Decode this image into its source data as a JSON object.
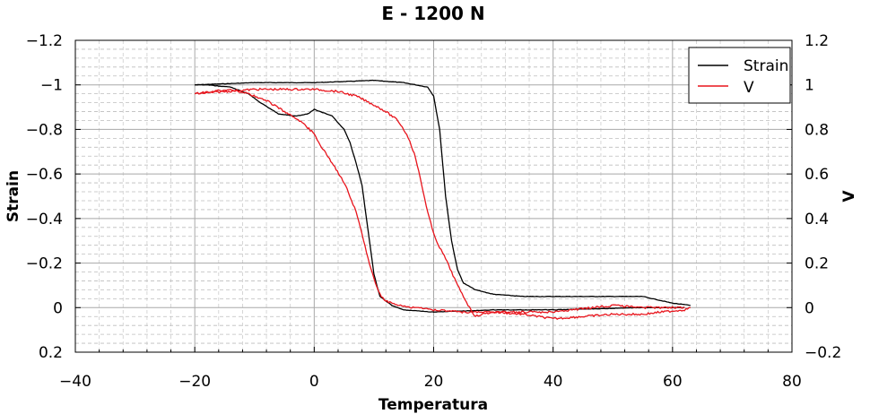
{
  "chart_data": {
    "type": "line",
    "title": "E  -  1200  N",
    "xlabel": "Temperatura",
    "ylabel_left": "Strain",
    "ylabel_right": "V",
    "xlim": [
      -40,
      80
    ],
    "ylim_left": [
      0.2,
      -1.2
    ],
    "ylim_right": [
      -0.2,
      1.2
    ],
    "grid": true,
    "legend_position": "top-right",
    "x_ticks": [
      "−40",
      "−20",
      "0",
      "20",
      "40",
      "60",
      "80"
    ],
    "y_left_ticks": [
      "−1.2",
      "−1",
      "−0.8",
      "−0.6",
      "−0.4",
      "−0.2",
      "0",
      "0.2"
    ],
    "y_right_ticks": [
      "1.2",
      "1",
      "0.8",
      "0.6",
      "0.4",
      "0.2",
      "0",
      "−0.2"
    ],
    "series": [
      {
        "name": "Strain",
        "color": "#000000",
        "axis": "left",
        "segments": [
          [
            [
              -20,
              -1.0
            ],
            [
              -10,
              -1.01
            ],
            [
              0,
              -1.01
            ],
            [
              10,
              -1.02
            ],
            [
              15,
              -1.01
            ],
            [
              19,
              -0.99
            ],
            [
              20,
              -0.95
            ],
            [
              21,
              -0.8
            ],
            [
              22,
              -0.5
            ],
            [
              23,
              -0.3
            ],
            [
              24,
              -0.17
            ],
            [
              25,
              -0.11
            ],
            [
              27,
              -0.08
            ],
            [
              30,
              -0.06
            ],
            [
              35,
              -0.05
            ],
            [
              45,
              -0.05
            ],
            [
              55,
              -0.05
            ],
            [
              60,
              -0.02
            ],
            [
              63,
              -0.01
            ]
          ],
          [
            [
              62,
              0.0
            ],
            [
              55,
              0.0
            ],
            [
              40,
              0.01
            ],
            [
              30,
              0.01
            ],
            [
              20,
              0.02
            ],
            [
              15,
              0.01
            ],
            [
              13,
              -0.01
            ],
            [
              11,
              -0.05
            ],
            [
              10,
              -0.15
            ],
            [
              9,
              -0.35
            ],
            [
              8,
              -0.55
            ],
            [
              7,
              -0.65
            ],
            [
              6,
              -0.74
            ],
            [
              5,
              -0.8
            ],
            [
              3,
              -0.86
            ],
            [
              0,
              -0.89
            ],
            [
              -1,
              -0.87
            ],
            [
              -3,
              -0.86
            ],
            [
              -6,
              -0.87
            ],
            [
              -9,
              -0.92
            ],
            [
              -11,
              -0.96
            ],
            [
              -14,
              -0.99
            ],
            [
              -18,
              -1.0
            ],
            [
              -20,
              -1.0
            ]
          ]
        ]
      },
      {
        "name": "V",
        "color": "#e8141c",
        "axis": "right",
        "segments": [
          [
            [
              -20,
              0.96
            ],
            [
              -15,
              0.97
            ],
            [
              -10,
              0.98
            ],
            [
              -5,
              0.98
            ],
            [
              0,
              0.98
            ],
            [
              4,
              0.97
            ],
            [
              7,
              0.95
            ],
            [
              10,
              0.91
            ],
            [
              12,
              0.88
            ],
            [
              14,
              0.84
            ],
            [
              15,
              0.8
            ],
            [
              16,
              0.75
            ],
            [
              17,
              0.67
            ],
            [
              18,
              0.55
            ],
            [
              19,
              0.43
            ],
            [
              20,
              0.33
            ],
            [
              21,
              0.27
            ],
            [
              22,
              0.22
            ],
            [
              23,
              0.16
            ],
            [
              24,
              0.1
            ],
            [
              25,
              0.05
            ],
            [
              26,
              0.0
            ],
            [
              27,
              -0.04
            ],
            [
              28,
              -0.03
            ],
            [
              30,
              -0.02
            ],
            [
              35,
              -0.03
            ],
            [
              40,
              -0.05
            ],
            [
              45,
              -0.04
            ],
            [
              50,
              -0.03
            ],
            [
              55,
              -0.03
            ],
            [
              58,
              -0.02
            ],
            [
              62,
              -0.01
            ],
            [
              63,
              0.0
            ]
          ],
          [
            [
              62,
              0.0
            ],
            [
              55,
              0.0
            ],
            [
              50,
              0.01
            ],
            [
              40,
              -0.02
            ],
            [
              30,
              -0.02
            ],
            [
              25,
              -0.02
            ],
            [
              20,
              -0.01
            ],
            [
              17,
              0.0
            ],
            [
              14,
              0.01
            ],
            [
              12,
              0.03
            ],
            [
              11,
              0.06
            ],
            [
              10,
              0.13
            ],
            [
              9,
              0.22
            ],
            [
              8,
              0.33
            ],
            [
              7,
              0.43
            ],
            [
              6,
              0.5
            ],
            [
              5,
              0.56
            ],
            [
              3,
              0.65
            ],
            [
              1,
              0.73
            ],
            [
              0,
              0.78
            ],
            [
              -2,
              0.83
            ],
            [
              -5,
              0.88
            ],
            [
              -8,
              0.93
            ],
            [
              -11,
              0.96
            ],
            [
              -14,
              0.98
            ],
            [
              -17,
              0.97
            ],
            [
              -20,
              0.96
            ]
          ]
        ]
      }
    ]
  }
}
